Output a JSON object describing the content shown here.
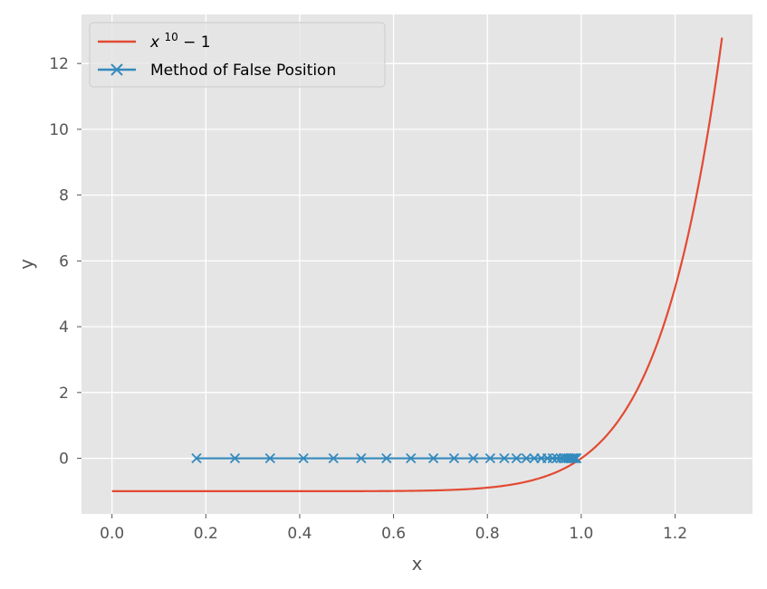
{
  "chart_data": {
    "type": "line",
    "xlabel": "x",
    "ylabel": "y",
    "xlim": [
      -0.065,
      1.365
    ],
    "ylim": [
      -1.69,
      13.49
    ],
    "xticks": [
      0.0,
      0.2,
      0.4,
      0.6,
      0.8,
      1.0,
      1.2
    ],
    "xtick_labels": [
      "0.0",
      "0.2",
      "0.4",
      "0.6",
      "0.8",
      "1.0",
      "1.2"
    ],
    "yticks": [
      0,
      2,
      4,
      6,
      8,
      10,
      12
    ],
    "ytick_labels": [
      "0",
      "2",
      "4",
      "6",
      "8",
      "10",
      "12"
    ],
    "grid": true,
    "legend_position": "upper-left",
    "series": [
      {
        "name": "x^{10} - 1",
        "legend_base": "x",
        "legend_exponent": "10",
        "legend_tail": " − 1",
        "kind": "function",
        "function": "x^10 - 1",
        "x_range": [
          0.0,
          1.3
        ],
        "color": "#E24A33",
        "marker": "none"
      },
      {
        "name": "Method of False Position",
        "kind": "points",
        "color": "#348ABD",
        "marker": "x",
        "x": [
          0.18,
          0.262,
          0.337,
          0.408,
          0.472,
          0.531,
          0.585,
          0.637,
          0.685,
          0.729,
          0.77,
          0.806,
          0.836,
          0.862,
          0.883,
          0.9,
          0.915,
          0.928,
          0.939,
          0.948,
          0.956,
          0.962,
          0.968,
          0.973,
          0.977,
          0.981,
          0.984,
          0.987,
          0.99
        ],
        "y": [
          0,
          0,
          0,
          0,
          0,
          0,
          0,
          0,
          0,
          0,
          0,
          0,
          0,
          0,
          0,
          0,
          0,
          0,
          0,
          0,
          0,
          0,
          0,
          0,
          0,
          0,
          0,
          0,
          0
        ]
      }
    ]
  }
}
